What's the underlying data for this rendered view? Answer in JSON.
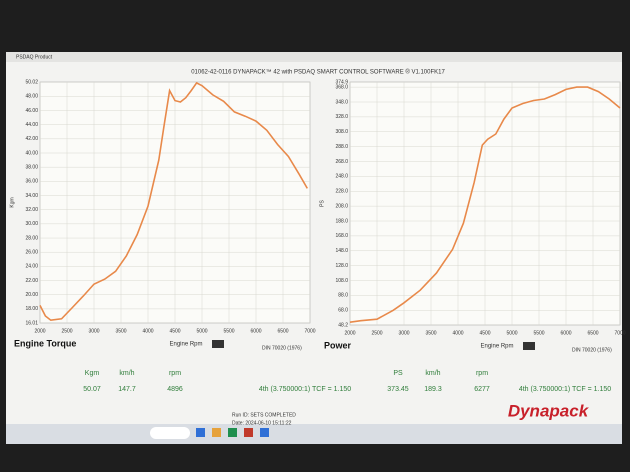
{
  "window_title": "PSDAQ Product",
  "header": "01062-42-0116 DYNAPACK™ 42 with PSDAQ SMART CONTROL SOFTWARE ® V1.100FK17",
  "chart_data": [
    {
      "type": "line",
      "title": "Engine Torque",
      "x_label": "Engine Rpm",
      "y_label": "Kgm",
      "note": "DIN 70020 (1976)",
      "color": "#e8894a",
      "grid": true,
      "x": [
        2000,
        2100,
        2200,
        2400,
        2600,
        2800,
        3000,
        3200,
        3400,
        3600,
        3800,
        4000,
        4200,
        4300,
        4400,
        4500,
        4600,
        4700,
        4800,
        4900,
        5000,
        5200,
        5400,
        5600,
        5800,
        6000,
        6200,
        6400,
        6600,
        6800,
        6950
      ],
      "values": [
        18.5,
        17.0,
        16.4,
        16.6,
        18.2,
        19.8,
        21.5,
        22.2,
        23.3,
        25.5,
        28.5,
        32.5,
        39.0,
        44.0,
        48.8,
        47.4,
        47.2,
        47.8,
        48.8,
        49.9,
        49.5,
        48.2,
        47.3,
        45.8,
        45.2,
        44.5,
        43.2,
        41.2,
        39.5,
        37.0,
        35.0
      ],
      "xlim": [
        2000,
        7000
      ],
      "xticks": [
        2000,
        2500,
        3000,
        3500,
        4000,
        4500,
        5000,
        5500,
        6000,
        6500,
        7000
      ],
      "ylim": [
        16.01,
        50.02
      ],
      "yticks": [
        16.01,
        {
          "value": 18,
          "label": "18.00"
        },
        {
          "value": 20,
          "label": "20.00"
        },
        {
          "value": 22,
          "label": "22.00"
        },
        {
          "value": 24,
          "label": "24.00"
        },
        {
          "value": 26,
          "label": "26.00"
        },
        {
          "value": 28,
          "label": "28.00"
        },
        {
          "value": 30,
          "label": "30.00"
        },
        {
          "value": 32,
          "label": "32.00"
        },
        {
          "value": 34,
          "label": "34.00"
        },
        {
          "value": 36,
          "label": "36.00"
        },
        {
          "value": 38,
          "label": "38.00"
        },
        {
          "value": 40,
          "label": "40.00"
        },
        {
          "value": 42,
          "label": "42.00"
        },
        {
          "value": 44,
          "label": "44.00"
        },
        {
          "value": 46,
          "label": "46.00"
        },
        {
          "value": 48,
          "label": "48.00"
        },
        50.02
      ]
    },
    {
      "type": "line",
      "title": "Power",
      "x_label": "Engine Rpm",
      "y_label": "PS",
      "note": "DIN 70020 (1976)",
      "color": "#e8894a",
      "grid": true,
      "x": [
        2000,
        2200,
        2500,
        2800,
        3000,
        3300,
        3600,
        3900,
        4100,
        4300,
        4450,
        4550,
        4700,
        4850,
        5000,
        5200,
        5400,
        5600,
        5800,
        6000,
        6200,
        6400,
        6600,
        6800,
        7000
      ],
      "values": [
        52,
        54,
        56,
        68,
        78,
        95,
        118,
        150,
        185,
        240,
        290,
        298,
        305,
        325,
        340,
        346,
        350,
        352,
        358,
        365,
        368,
        368,
        362,
        352,
        340
      ],
      "xlim": [
        2000,
        7000
      ],
      "xticks": [
        2000,
        2500,
        3000,
        3500,
        4000,
        4500,
        5000,
        5500,
        6000,
        6500,
        7000
      ],
      "ylim": [
        48.2,
        374.9
      ],
      "yticks": [
        48.2,
        {
          "value": 68,
          "label": "68.0"
        },
        {
          "value": 88,
          "label": "88.0"
        },
        {
          "value": 108,
          "label": "108.0"
        },
        {
          "value": 128,
          "label": "128.0"
        },
        {
          "value": 148,
          "label": "148.0"
        },
        {
          "value": 168,
          "label": "168.0"
        },
        {
          "value": 188,
          "label": "188.0"
        },
        {
          "value": 208,
          "label": "208.0"
        },
        {
          "value": 228,
          "label": "228.0"
        },
        {
          "value": 248,
          "label": "248.0"
        },
        {
          "value": 268,
          "label": "268.0"
        },
        {
          "value": 288,
          "label": "288.0"
        },
        {
          "value": 308,
          "label": "308.0"
        },
        {
          "value": 328,
          "label": "328.0"
        },
        {
          "value": 348,
          "label": "348.0"
        },
        {
          "value": 368,
          "label": "368.0"
        },
        374.9
      ]
    }
  ],
  "readouts": [
    {
      "labels": [
        "Kgm",
        "km/h",
        "rpm"
      ],
      "values": [
        "50.07",
        "147.7",
        "4896"
      ],
      "gear": "4th (3.750000:1) TCF = 1.150"
    },
    {
      "labels": [
        "PS",
        "km/h",
        "rpm"
      ],
      "values": [
        "373.45",
        "189.3",
        "6277"
      ],
      "gear": "4th (3.750000:1) TCF = 1.150"
    }
  ],
  "status": {
    "run_id": "Run ID: SETS COMPLETED",
    "date": "Date: 2024-06-10 15:11:22"
  },
  "brand": "Dynapack"
}
